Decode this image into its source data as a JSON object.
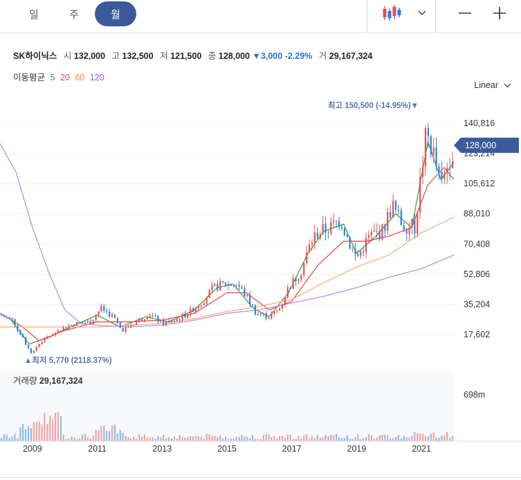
{
  "tabs": [
    {
      "label": "일",
      "active": false
    },
    {
      "label": "주",
      "active": false
    },
    {
      "label": "월",
      "active": true
    }
  ],
  "accent_color": "#3c5a9a",
  "info": {
    "name": "SK하이닉스",
    "open_label": "시",
    "open": "132,000",
    "high_label": "고",
    "high": "132,500",
    "low_label": "저",
    "low": "121,500",
    "close_label": "종",
    "close": "128,000",
    "change": "▼3,000",
    "change_pct": "-2.29%",
    "volume_label": "거",
    "volume": "29,167,324"
  },
  "ma": {
    "label": "이동평균",
    "periods": [
      {
        "label": "5",
        "color": "#3aa63a"
      },
      {
        "label": "20",
        "color": "#e84c4c"
      },
      {
        "label": "60",
        "color": "#f08a3c"
      },
      {
        "label": "120",
        "color": "#9a55e0"
      }
    ]
  },
  "scale_label": "Linear",
  "icons": {
    "chart_type": "candlestick-icon",
    "dropdown": "chevron-down-icon",
    "zoom_out": "minus-icon",
    "zoom_in": "plus-icon"
  },
  "chart_data": {
    "type": "candlestick",
    "y_ticks": [
      "140,816",
      "123,214",
      "105,612",
      "88,010",
      "70,408",
      "52,806",
      "35,204",
      "17,602"
    ],
    "y_tick_values": [
      140816,
      123214,
      105612,
      88010,
      70408,
      52806,
      35204,
      17602
    ],
    "x_ticks": [
      "2009",
      "2011",
      "2013",
      "2015",
      "2017",
      "2019",
      "2021"
    ],
    "x_tick_years": [
      2009,
      2011,
      2013,
      2015,
      2017,
      2019,
      2021
    ],
    "x_range": [
      2008.0,
      2022.0
    ],
    "ylim": [
      8000,
      160000
    ],
    "last_price_label": "128,000",
    "max_label": "최고 150,500 (-14.95%)▼",
    "min_label": "▲최저 5,770 (2118.37%)",
    "up_color": "#e84c4c",
    "down_color": "#2a7de1",
    "volume_title_label": "거래량",
    "volume_title_value": "29,167,324",
    "volume_tick": "698m",
    "price_anchors": [
      [
        2008.0,
        29000
      ],
      [
        2008.4,
        26000
      ],
      [
        2008.85,
        10000
      ],
      [
        2008.95,
        6500
      ],
      [
        2009.3,
        14000
      ],
      [
        2009.8,
        20000
      ],
      [
        2010.3,
        24000
      ],
      [
        2010.8,
        25000
      ],
      [
        2011.1,
        33000
      ],
      [
        2011.5,
        28000
      ],
      [
        2011.75,
        20000
      ],
      [
        2012.3,
        26000
      ],
      [
        2012.6,
        30000
      ],
      [
        2013.0,
        24000
      ],
      [
        2013.4,
        26000
      ],
      [
        2013.8,
        30000
      ],
      [
        2014.3,
        38000
      ],
      [
        2014.6,
        45000
      ],
      [
        2014.9,
        47000
      ],
      [
        2015.3,
        47000
      ],
      [
        2015.6,
        40000
      ],
      [
        2015.9,
        30000
      ],
      [
        2016.3,
        28000
      ],
      [
        2016.6,
        32000
      ],
      [
        2016.9,
        45000
      ],
      [
        2017.3,
        55000
      ],
      [
        2017.6,
        72000
      ],
      [
        2017.8,
        77000
      ],
      [
        2018.2,
        80000
      ],
      [
        2018.5,
        85000
      ],
      [
        2018.8,
        70000
      ],
      [
        2019.0,
        62000
      ],
      [
        2019.4,
        75000
      ],
      [
        2019.8,
        78000
      ],
      [
        2020.1,
        93000
      ],
      [
        2020.4,
        82000
      ],
      [
        2020.8,
        80000
      ],
      [
        2020.95,
        105000
      ],
      [
        2021.15,
        135000
      ],
      [
        2021.35,
        125000
      ],
      [
        2021.6,
        103000
      ],
      [
        2021.85,
        120000
      ],
      [
        2022.0,
        128000
      ]
    ],
    "ma_series": [
      {
        "name": "5",
        "color": "#3aa63a",
        "points": [
          [
            2008.3,
            27000
          ],
          [
            2008.9,
            12000
          ],
          [
            2009.5,
            16000
          ],
          [
            2010.3,
            23000
          ],
          [
            2011.0,
            29000
          ],
          [
            2011.7,
            22000
          ],
          [
            2012.5,
            28000
          ],
          [
            2013.2,
            25000
          ],
          [
            2014.0,
            32000
          ],
          [
            2014.7,
            45000
          ],
          [
            2015.2,
            47000
          ],
          [
            2015.8,
            33000
          ],
          [
            2016.3,
            28000
          ],
          [
            2016.9,
            42000
          ],
          [
            2017.5,
            65000
          ],
          [
            2018.0,
            78000
          ],
          [
            2018.6,
            82000
          ],
          [
            2019.0,
            65000
          ],
          [
            2019.6,
            75000
          ],
          [
            2020.2,
            88000
          ],
          [
            2020.7,
            80000
          ],
          [
            2021.2,
            130000
          ],
          [
            2021.6,
            108000
          ],
          [
            2022.0,
            118000
          ]
        ]
      },
      {
        "name": "20",
        "color": "#e84c4c",
        "points": [
          [
            2008.0,
            30000
          ],
          [
            2008.7,
            22000
          ],
          [
            2009.2,
            14000
          ],
          [
            2010.0,
            20000
          ],
          [
            2011.0,
            25000
          ],
          [
            2012.0,
            25000
          ],
          [
            2013.0,
            26000
          ],
          [
            2014.0,
            30000
          ],
          [
            2015.0,
            42000
          ],
          [
            2015.6,
            42000
          ],
          [
            2016.3,
            32000
          ],
          [
            2017.0,
            37000
          ],
          [
            2017.8,
            58000
          ],
          [
            2018.6,
            72000
          ],
          [
            2019.3,
            72000
          ],
          [
            2020.0,
            75000
          ],
          [
            2020.7,
            80000
          ],
          [
            2021.2,
            105000
          ],
          [
            2021.7,
            115000
          ],
          [
            2022.0,
            108000
          ]
        ]
      },
      {
        "name": "60",
        "color": "#f4b07a",
        "points": [
          [
            2008.0,
            22000
          ],
          [
            2009.0,
            22000
          ],
          [
            2010.0,
            22000
          ],
          [
            2011.0,
            22000
          ],
          [
            2012.0,
            23000
          ],
          [
            2013.0,
            24000
          ],
          [
            2014.0,
            27000
          ],
          [
            2015.0,
            31000
          ],
          [
            2016.0,
            34000
          ],
          [
            2017.0,
            38000
          ],
          [
            2018.0,
            48000
          ],
          [
            2019.0,
            57000
          ],
          [
            2020.0,
            64000
          ],
          [
            2021.0,
            77000
          ],
          [
            2022.0,
            86000
          ]
        ]
      },
      {
        "name": "120",
        "color": "#b98ef0",
        "points": [
          [
            2008.0,
            129000
          ],
          [
            2008.5,
            112000
          ],
          [
            2009.0,
            80000
          ],
          [
            2009.5,
            54000
          ],
          [
            2010.0,
            32000
          ],
          [
            2010.5,
            24000
          ],
          [
            2011.0,
            23000
          ],
          [
            2012.0,
            22000
          ],
          [
            2013.0,
            23000
          ],
          [
            2014.0,
            26000
          ],
          [
            2015.0,
            30000
          ],
          [
            2016.0,
            32000
          ],
          [
            2017.0,
            36000
          ],
          [
            2018.0,
            40000
          ],
          [
            2019.0,
            45000
          ],
          [
            2020.0,
            51000
          ],
          [
            2021.0,
            56000
          ],
          [
            2022.0,
            64000
          ]
        ]
      }
    ]
  }
}
